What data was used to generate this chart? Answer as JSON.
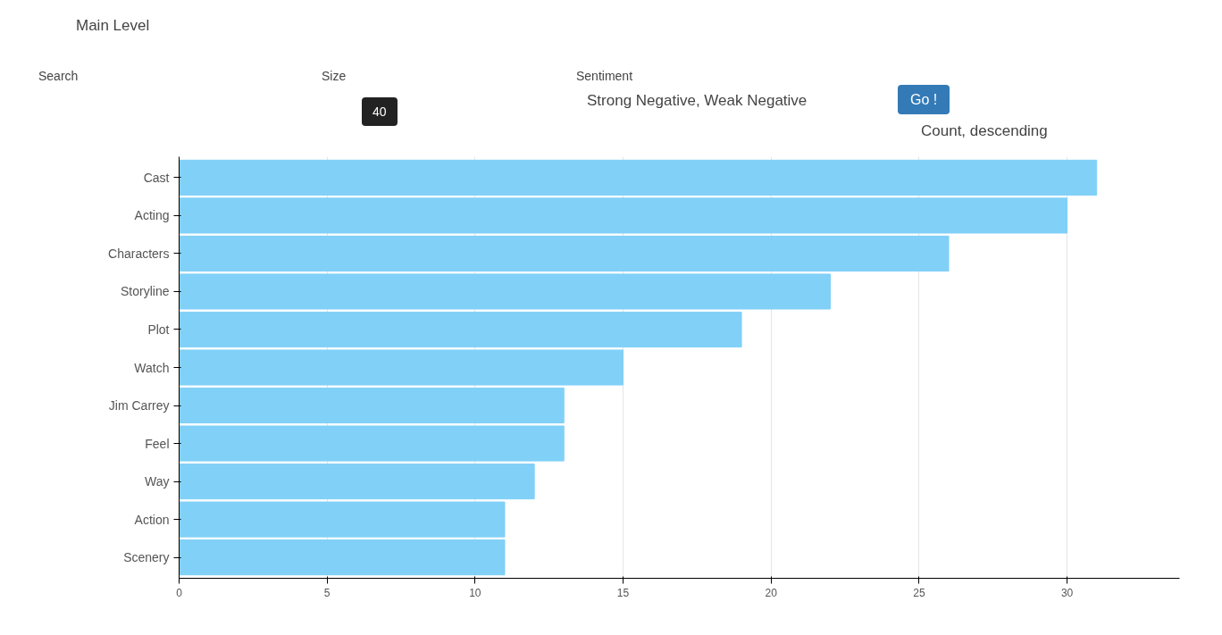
{
  "chart_data": {
    "type": "bar",
    "orientation": "horizontal",
    "categories": [
      "Cast",
      "Acting",
      "Characters",
      "Storyline",
      "Plot",
      "Watch",
      "Jim Carrey",
      "Feel",
      "Way",
      "Action",
      "Scenery"
    ],
    "values": [
      31,
      30,
      26,
      22,
      19,
      15,
      13,
      13,
      12,
      11,
      11
    ],
    "color": "#81d0f7",
    "xlim": [
      0,
      33.8
    ],
    "xticks": [
      0,
      5,
      10,
      15,
      20,
      25,
      30
    ],
    "grid": "x",
    "annotations": [
      "Main Level",
      "Search",
      "Size",
      "40",
      "Sentiment",
      "Strong Negative, Weak Negative",
      "Go !",
      "Count, descending"
    ]
  }
}
